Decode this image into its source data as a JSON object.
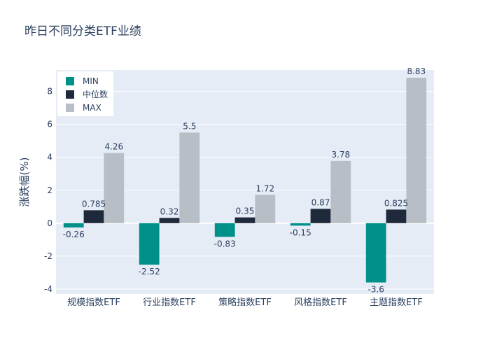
{
  "chart_data": {
    "type": "bar",
    "title": "昨日不同分类ETF业绩",
    "xlabel": "",
    "ylabel": "涨跌幅(%)",
    "ylim": [
      -4.3,
      9.3
    ],
    "yticks": [
      -4,
      -2,
      0,
      2,
      4,
      6,
      8
    ],
    "categories": [
      "规模指数ETF",
      "行业指数ETF",
      "策略指数ETF",
      "风格指数ETF",
      "主题指数ETF"
    ],
    "series": [
      {
        "name": "MIN",
        "color": "#00908a",
        "values": [
          -0.26,
          -2.52,
          -0.83,
          -0.15,
          -3.6
        ],
        "labels": [
          "-0.26",
          "-2.52",
          "-0.83",
          "-0.15",
          "-3.6"
        ]
      },
      {
        "name": "中位数",
        "color": "#1e2a3c",
        "values": [
          0.785,
          0.32,
          0.35,
          0.87,
          0.825
        ],
        "labels": [
          "0.785",
          "0.32",
          "0.35",
          "0.87",
          "0.825"
        ]
      },
      {
        "name": "MAX",
        "color": "#b8bec6",
        "values": [
          4.26,
          5.5,
          1.72,
          3.78,
          8.83
        ],
        "labels": [
          "4.26",
          "5.5",
          "1.72",
          "3.78",
          "8.83"
        ]
      }
    ],
    "legend": "top-left",
    "grid": true
  }
}
